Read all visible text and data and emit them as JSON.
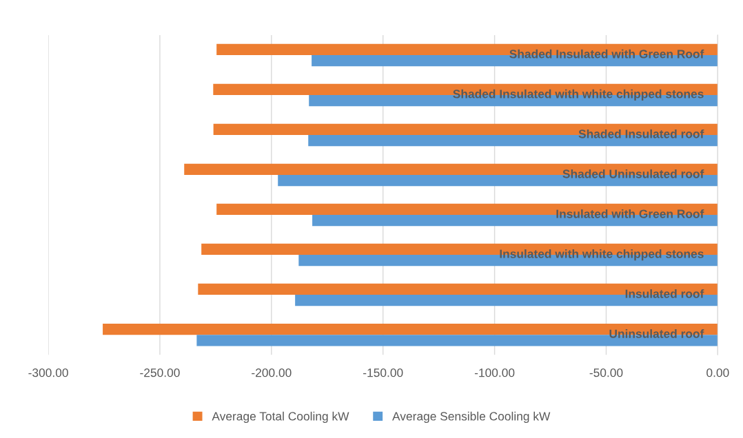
{
  "chart_data": {
    "type": "bar",
    "orientation": "horizontal",
    "categories": [
      "Shaded Insulated with Green Roof",
      "Shaded Insulated with white chipped stones",
      "Shaded Insulated roof",
      "Shaded Uninsulated roof",
      "Insulated with Green Roof",
      "Insulated with white chipped stones",
      "Insulated roof",
      "Uninsulated roof"
    ],
    "series": [
      {
        "name": "Average Total Cooling kW",
        "color": "#ed7d31",
        "values": [
          -224.6,
          -226.1,
          -226.0,
          -239.1,
          -224.6,
          -231.4,
          -232.9,
          -275.6
        ]
      },
      {
        "name": "Average Sensible Cooling kW",
        "color": "#5b9bd5",
        "values": [
          -182.0,
          -183.2,
          -183.5,
          -197.1,
          -181.7,
          -187.8,
          -189.4,
          -233.5
        ]
      }
    ],
    "xlim": [
      -300,
      0
    ],
    "xticks": [
      {
        "value": -300,
        "label": "-300.00"
      },
      {
        "value": -250,
        "label": "-250.00"
      },
      {
        "value": -200,
        "label": "-200.00"
      },
      {
        "value": -150,
        "label": "-150.00"
      },
      {
        "value": -100,
        "label": "-100.00"
      },
      {
        "value": -50,
        "label": "-50.00"
      },
      {
        "value": 0,
        "label": "0.00"
      }
    ],
    "grid": "x",
    "legend": "bottom"
  }
}
